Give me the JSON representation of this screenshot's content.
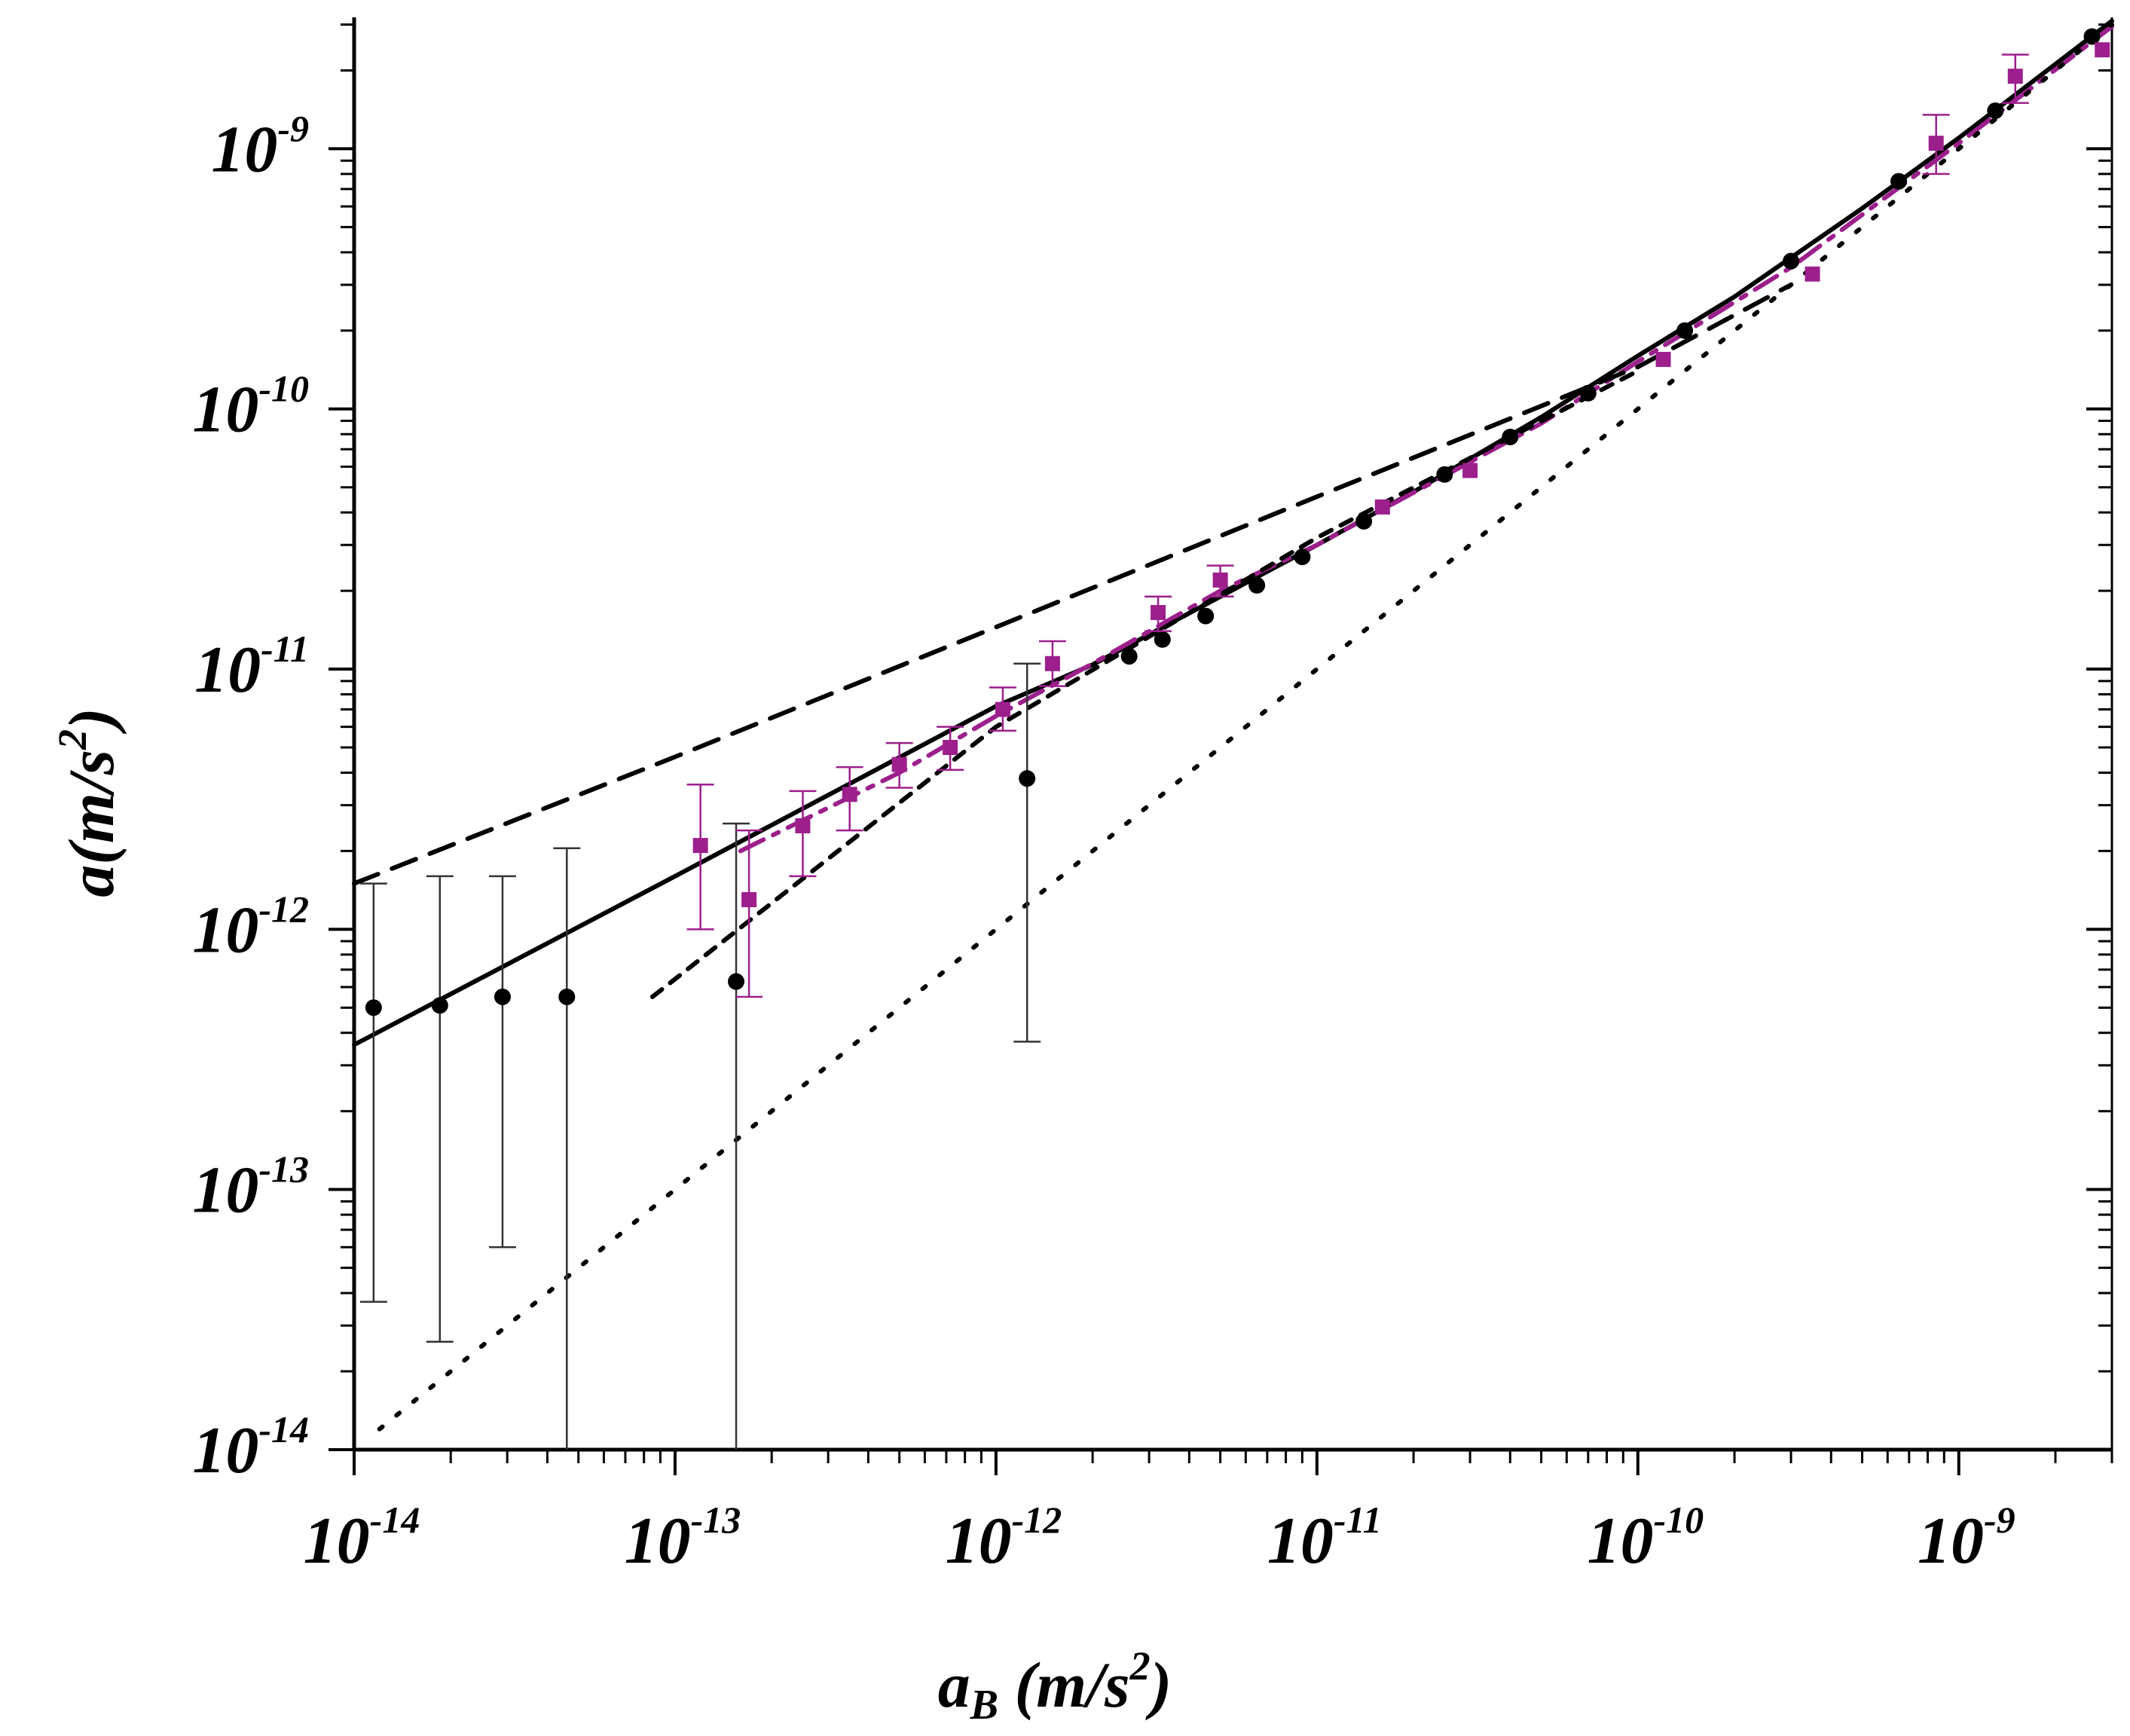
{
  "chart_data": {
    "type": "scatter",
    "x_scale": "log",
    "y_scale": "log",
    "xlim": [
      1e-14,
      3e-09
    ],
    "ylim": [
      1e-14,
      3.2e-09
    ],
    "xlabel": {
      "main": "a",
      "sub": "B",
      "units_open": " (m/s",
      "units_sup": "2",
      "units_close": ")"
    },
    "ylabel": {
      "main": "a(m/s",
      "sup": "2",
      "close": ")"
    },
    "x_ticks": [
      {
        "base": "10",
        "exp": "-14",
        "value": 1e-14
      },
      {
        "base": "10",
        "exp": "-13",
        "value": 1e-13
      },
      {
        "base": "10",
        "exp": "-12",
        "value": 1e-12
      },
      {
        "base": "10",
        "exp": "-11",
        "value": 1e-11
      },
      {
        "base": "10",
        "exp": "-10",
        "value": 1e-10
      },
      {
        "base": "10",
        "exp": "-9",
        "value": 1e-09
      }
    ],
    "y_ticks": [
      {
        "base": "10",
        "exp": "-14",
        "value": 1e-14
      },
      {
        "base": "10",
        "exp": "-13",
        "value": 1e-13
      },
      {
        "base": "10",
        "exp": "-12",
        "value": 1e-12
      },
      {
        "base": "10",
        "exp": "-11",
        "value": 1e-11
      },
      {
        "base": "10",
        "exp": "-10",
        "value": 1e-10
      },
      {
        "base": "10",
        "exp": "-9",
        "value": 1e-09
      }
    ],
    "grid": false,
    "legend": "none",
    "colors": {
      "black": "#000000",
      "magenta": "#9c1f8c",
      "errbar_black": "#333333"
    },
    "series": [
      {
        "marker": "circle",
        "color": "#000000",
        "points": [
          {
            "x": 1.15e-14,
            "y": 5e-13,
            "lo": 3.7e-14,
            "hi": 1.5e-12
          },
          {
            "x": 1.85e-14,
            "y": 5.1e-13,
            "lo": 2.6e-14,
            "hi": 1.6e-12
          },
          {
            "x": 2.9e-14,
            "y": 5.5e-13,
            "lo": 6e-14,
            "hi": 1.6e-12
          },
          {
            "x": 4.6e-14,
            "y": 5.5e-13,
            "lo": 1e-14,
            "hi": 2.05e-12
          },
          {
            "x": 1.55e-13,
            "y": 6.3e-13,
            "lo": 1e-14,
            "hi": 2.55e-12
          },
          {
            "x": 1.25e-12,
            "y": 3.8e-12,
            "lo": 3.7e-13,
            "hi": 1.05e-11
          },
          {
            "x": 2.6e-12,
            "y": 1.12e-11
          },
          {
            "x": 3.3e-12,
            "y": 1.3e-11
          },
          {
            "x": 4.5e-12,
            "y": 1.6e-11
          },
          {
            "x": 6.5e-12,
            "y": 2.1e-11
          },
          {
            "x": 9e-12,
            "y": 2.7e-11
          },
          {
            "x": 1.4e-11,
            "y": 3.7e-11
          },
          {
            "x": 2.5e-11,
            "y": 5.6e-11
          },
          {
            "x": 4e-11,
            "y": 7.8e-11
          },
          {
            "x": 7e-11,
            "y": 1.15e-10
          },
          {
            "x": 1.4e-10,
            "y": 2e-10
          },
          {
            "x": 3e-10,
            "y": 3.7e-10
          },
          {
            "x": 6.5e-10,
            "y": 7.5e-10
          },
          {
            "x": 1.3e-09,
            "y": 1.4e-09
          },
          {
            "x": 2.6e-09,
            "y": 2.7e-09
          }
        ]
      },
      {
        "marker": "square",
        "color": "#9c1f8c",
        "points": [
          {
            "x": 1.2e-13,
            "y": 2.1e-12,
            "lo": 1e-12,
            "hi": 3.6e-12
          },
          {
            "x": 1.7e-13,
            "y": 1.3e-12,
            "lo": 5.5e-13,
            "hi": 2.4e-12
          },
          {
            "x": 2.5e-13,
            "y": 2.5e-12,
            "lo": 1.6e-12,
            "hi": 3.4e-12
          },
          {
            "x": 3.5e-13,
            "y": 3.3e-12,
            "lo": 2.4e-12,
            "hi": 4.2e-12
          },
          {
            "x": 5e-13,
            "y": 4.3e-12,
            "lo": 3.5e-12,
            "hi": 5.2e-12
          },
          {
            "x": 7.2e-13,
            "y": 5e-12,
            "lo": 4.1e-12,
            "hi": 6e-12
          },
          {
            "x": 1.05e-12,
            "y": 7e-12,
            "lo": 5.8e-12,
            "hi": 8.5e-12
          },
          {
            "x": 1.5e-12,
            "y": 1.05e-11,
            "lo": 8.6e-12,
            "hi": 1.28e-11
          },
          {
            "x": 3.2e-12,
            "y": 1.65e-11,
            "lo": 1.4e-11,
            "hi": 1.9e-11
          },
          {
            "x": 5e-12,
            "y": 2.2e-11,
            "lo": 1.9e-11,
            "hi": 2.5e-11
          },
          {
            "x": 1.6e-11,
            "y": 4.2e-11
          },
          {
            "x": 3e-11,
            "y": 5.8e-11
          },
          {
            "x": 1.2e-10,
            "y": 1.55e-10
          },
          {
            "x": 3.5e-10,
            "y": 3.3e-10
          },
          {
            "x": 8.5e-10,
            "y": 1.05e-09,
            "lo": 8e-10,
            "hi": 1.35e-09
          },
          {
            "x": 1.5e-09,
            "y": 1.9e-09,
            "lo": 1.5e-09,
            "hi": 2.3e-09
          },
          {
            "x": 2.8e-09,
            "y": 2.4e-09
          }
        ]
      }
    ],
    "curves": [
      {
        "style": "solid",
        "color": "#000000",
        "x": [
          1e-14,
          1e-13,
          1e-12,
          2e-12,
          5e-12,
          1e-11,
          2e-11,
          5e-11,
          1e-10,
          2e-10,
          5e-10,
          1e-09,
          3e-09
        ],
        "y": [
          3.6e-13,
          1.6e-12,
          7.2e-12,
          1.04e-11,
          1.9e-11,
          3e-11,
          4.8e-11,
          9.3e-11,
          1.6e-10,
          2.7e-10,
          5.9e-10,
          1.1e-09,
          3.1e-09
        ]
      },
      {
        "style": "dashdot",
        "color": "#9c1f8c",
        "x": [
          1.6e-13,
          5e-13,
          1e-12,
          2e-12,
          5e-12,
          1e-11,
          5e-11,
          1e-10,
          3e-10,
          1e-09,
          3e-09
        ],
        "y": [
          2e-12,
          4e-12,
          6.6e-12,
          1.05e-11,
          2e-11,
          3e-11,
          8.8e-11,
          1.52e-10,
          3.5e-10,
          1.05e-09,
          2.95e-09
        ]
      },
      {
        "style": "long-dash",
        "color": "#000000",
        "x": [
          1e-14,
          1e-13,
          1e-12,
          1e-11,
          1e-10,
          3e-10
        ],
        "y": [
          1.5e-12,
          4.6e-12,
          1.45e-11,
          4.6e-11,
          1.45e-10,
          3e-10
        ]
      },
      {
        "style": "short-dash",
        "color": "#000000",
        "x": [
          8.5e-14,
          1e-12,
          1e-11,
          1e-10
        ],
        "y": [
          5.5e-13,
          6e-12,
          3.2e-11,
          1.4e-10
        ]
      },
      {
        "style": "dotted",
        "color": "#000000",
        "x": [
          1.2e-14,
          3e-09
        ],
        "y": [
          1.2e-14,
          3e-09
        ]
      }
    ]
  }
}
